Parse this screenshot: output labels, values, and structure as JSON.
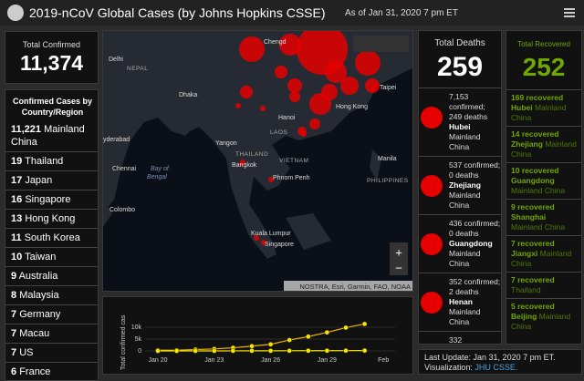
{
  "header": {
    "title": "2019-nCoV Global Cases (by Johns Hopkins CSSE)",
    "as_of": "As of Jan 31, 2020 7 pm ET"
  },
  "total_confirmed": {
    "label": "Total Confirmed",
    "value": "11,374"
  },
  "confirmed_by_country": {
    "title": "Confirmed Cases by Country/Region",
    "items": [
      {
        "count": "11,221",
        "place": "Mainland China"
      },
      {
        "count": "19",
        "place": "Thailand"
      },
      {
        "count": "17",
        "place": "Japan"
      },
      {
        "count": "16",
        "place": "Singapore"
      },
      {
        "count": "13",
        "place": "Hong Kong"
      },
      {
        "count": "11",
        "place": "South Korea"
      },
      {
        "count": "10",
        "place": "Taiwan"
      },
      {
        "count": "9",
        "place": "Australia"
      },
      {
        "count": "8",
        "place": "Malaysia"
      },
      {
        "count": "7",
        "place": "Germany"
      },
      {
        "count": "7",
        "place": "Macau"
      },
      {
        "count": "7",
        "place": "US"
      },
      {
        "count": "6",
        "place": "France"
      }
    ]
  },
  "map": {
    "labels": [
      "Chengd",
      "Delhi",
      "NEPAL",
      "Dhaka",
      "Hanoi",
      "Taipei",
      "Hong Kong",
      "Yangon",
      "LAOS",
      "THAILAND",
      "VIETNAM",
      "Bangkok",
      "yderabad",
      "Chennai",
      "Bay of",
      "Bengal",
      "Manila",
      "PHILIPPINES",
      "Phnom Penh",
      "Colombo",
      "Kuala Lumpur",
      "Singapore"
    ],
    "attribution": "NOSTRA, Esri, Garmin, FAO, NOAA",
    "zoom_in": "+",
    "zoom_out": "−"
  },
  "chart": {
    "type": "line",
    "y_label": "Total confirmed cas",
    "x": [
      "Jan 20",
      "Jan 21",
      "Jan 22",
      "Jan 23",
      "Jan 24",
      "Jan 25",
      "Jan 26",
      "Jan 27",
      "Jan 28",
      "Jan 29",
      "Jan 30",
      "Jan 31"
    ],
    "series": [
      {
        "color": "#f0b400",
        "values": [
          282,
          314,
          581,
          846,
          1320,
          2014,
          2798,
          4593,
          6065,
          7818,
          9826,
          11374
        ]
      },
      {
        "color": "#f5e400",
        "values": [
          4,
          6,
          8,
          14,
          25,
          40,
          57,
          64,
          87,
          105,
          118,
          153
        ]
      }
    ],
    "ylim": [
      0,
      15000
    ],
    "yticks": [
      0,
      {
        "value": 5000,
        "label": "5k"
      },
      {
        "value": 10000,
        "label": "10k"
      }
    ],
    "xticks": [
      "Jan 20",
      "Jan 23",
      "Jan 26",
      "Jan 29",
      "Feb"
    ]
  },
  "total_deaths": {
    "label": "Total Deaths",
    "value": "259",
    "items": [
      {
        "confirmed": "7,153 confirmed;",
        "deaths": "249 deaths",
        "province": "Hubei",
        "country": "Mainland China"
      },
      {
        "confirmed": "537 confirmed;",
        "deaths": "0 deaths",
        "province": "Zhejiang",
        "country": "Mainland China"
      },
      {
        "confirmed": "436 confirmed;",
        "deaths": "0 deaths",
        "province": "Guangdong",
        "country": "Mainland China"
      },
      {
        "confirmed": "352 confirmed;",
        "deaths": "2 deaths",
        "province": "Henan",
        "country": "Mainland China"
      },
      {
        "confirmed": "332"
      }
    ]
  },
  "total_recovered": {
    "label": "Total Recovered",
    "value": "252",
    "items": [
      {
        "count": "169 recovered",
        "province": "Hubei",
        "country": "Mainland China"
      },
      {
        "count": "14 recovered",
        "province": "Zhejiang",
        "country": "Mainland China"
      },
      {
        "count": "10 recovered",
        "province": "Guangdong",
        "country": "Mainland China"
      },
      {
        "count": "9 recovered",
        "province": "Shanghai",
        "country": "Mainland China"
      },
      {
        "count": "7 recovered",
        "province": "Jiangxi",
        "country": "Mainland China"
      },
      {
        "count": "7 recovered",
        "country": "Thailand"
      },
      {
        "count": "5 recovered",
        "province": "Beijing",
        "country": "Mainland China"
      }
    ]
  },
  "footer": {
    "last_update": "Last Update: Jan 31, 2020 7 pm ET.",
    "visualization": "Visualization:",
    "link": "JHU CSSE."
  }
}
